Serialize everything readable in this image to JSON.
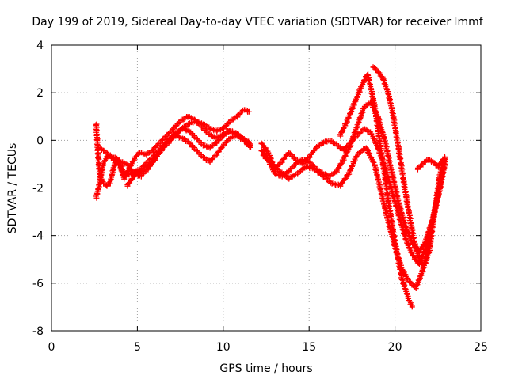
{
  "chart_data": {
    "type": "scatter",
    "title": "Day 199 of 2019, Sidereal Day-to-day VTEC variation (SDTVAR) for receiver lmmf",
    "xlabel": "GPS time / hours",
    "ylabel": "SDTVAR / TECUs",
    "xlim": [
      0,
      25
    ],
    "ylim": [
      -8,
      4
    ],
    "xticks": [
      "0",
      "5",
      "10",
      "15",
      "20",
      "25"
    ],
    "yticks": [
      "-8",
      "-6",
      "-4",
      "-2",
      "0",
      "2",
      "4"
    ],
    "grid": true,
    "marker": "plus",
    "color": "#ff0000",
    "series": [
      {
        "x": [
          2.6,
          2.7,
          2.8,
          3.0,
          3.2,
          3.4,
          3.6,
          3.8,
          4.0,
          4.3,
          4.6,
          4.9,
          5.2,
          5.6,
          6.0,
          6.4,
          6.8,
          7.2,
          7.6,
          8.0,
          8.4,
          8.8,
          9.2,
          9.6,
          10.0,
          10.4,
          10.8,
          11.2,
          11.5
        ],
        "y": [
          0.7,
          -0.5,
          -1.5,
          -1.8,
          -1.9,
          -1.8,
          -1.2,
          -0.8,
          -1.1,
          -1.5,
          -1.4,
          -1.3,
          -1.2,
          -0.9,
          -0.6,
          -0.3,
          0.0,
          0.3,
          0.5,
          0.7,
          0.8,
          0.7,
          0.5,
          0.4,
          0.5,
          0.8,
          1.0,
          1.3,
          1.2
        ]
      },
      {
        "x": [
          2.7,
          3.0,
          3.3,
          3.6,
          3.9,
          4.2,
          4.5,
          4.8,
          5.1,
          5.5,
          5.9,
          6.3,
          6.7,
          7.1,
          7.5,
          7.9,
          8.3,
          8.7,
          9.1,
          9.5,
          9.9,
          10.3,
          10.7,
          11.1,
          11.5
        ],
        "y": [
          -0.3,
          -0.4,
          -0.6,
          -0.7,
          -0.8,
          -1.6,
          -1.2,
          -0.8,
          -0.5,
          -0.6,
          -0.4,
          -0.1,
          0.2,
          0.5,
          0.8,
          1.0,
          0.9,
          0.6,
          0.3,
          0.1,
          0.2,
          0.4,
          0.3,
          0.1,
          -0.1
        ]
      },
      {
        "x": [
          2.6,
          2.8,
          3.0,
          3.3,
          3.6,
          4.0,
          4.4,
          4.8,
          5.2,
          5.6,
          6.0,
          6.4,
          6.8,
          7.2,
          7.6,
          8.0,
          8.4,
          8.8,
          9.2,
          9.6,
          10.0,
          10.4,
          10.8,
          11.2,
          11.6
        ],
        "y": [
          -2.4,
          -1.8,
          -1.0,
          -0.6,
          -0.8,
          -0.9,
          -1.0,
          -1.4,
          -1.5,
          -1.2,
          -0.8,
          -0.4,
          -0.1,
          0.2,
          0.5,
          0.4,
          0.1,
          -0.2,
          -0.3,
          -0.1,
          0.2,
          0.4,
          0.3,
          0.0,
          -0.3
        ]
      },
      {
        "x": [
          4.4,
          4.8,
          5.2,
          5.6,
          6.0,
          6.4,
          6.8,
          7.2,
          7.6,
          8.0,
          8.4,
          8.8,
          9.2,
          9.6,
          10.0,
          10.4,
          10.8,
          11.2,
          11.6
        ],
        "y": [
          -1.9,
          -1.5,
          -1.3,
          -1.1,
          -0.8,
          -0.4,
          0.0,
          0.2,
          0.1,
          -0.1,
          -0.4,
          -0.7,
          -0.9,
          -0.6,
          -0.2,
          0.1,
          0.2,
          0.0,
          -0.2
        ]
      },
      {
        "x": [
          12.2,
          12.6,
          13.0,
          13.4,
          13.8,
          14.2,
          14.6,
          15.0,
          15.4,
          15.8,
          16.2,
          16.6,
          17.0,
          17.4,
          17.8,
          18.2,
          18.6,
          19.0,
          19.4,
          19.8,
          20.2,
          20.6,
          21.0,
          21.4,
          21.8,
          22.2,
          22.6,
          22.9
        ],
        "y": [
          -0.1,
          -0.5,
          -1.2,
          -0.9,
          -0.5,
          -0.8,
          -1.0,
          -0.7,
          -0.3,
          -0.1,
          0.0,
          -0.2,
          -0.4,
          -0.1,
          0.2,
          0.5,
          0.3,
          -0.3,
          -1.1,
          -2.1,
          -3.1,
          -4.1,
          -4.8,
          -5.2,
          -4.5,
          -3.3,
          -2.0,
          -0.8
        ]
      },
      {
        "x": [
          12.2,
          12.6,
          13.0,
          13.4,
          13.8,
          14.2,
          14.6,
          15.0,
          15.4,
          15.8,
          16.2,
          16.6,
          17.0,
          17.4,
          17.8,
          18.2,
          18.6,
          19.0,
          19.4,
          19.8,
          20.2,
          20.6,
          21.0,
          21.4,
          21.8,
          22.2,
          22.6,
          22.9
        ],
        "y": [
          -0.4,
          -0.8,
          -1.4,
          -1.5,
          -1.3,
          -1.0,
          -0.8,
          -0.9,
          -1.2,
          -1.4,
          -1.5,
          -1.3,
          -0.8,
          -0.2,
          0.6,
          1.4,
          1.6,
          1.0,
          0.0,
          -1.3,
          -2.6,
          -3.6,
          -4.3,
          -4.7,
          -4.2,
          -3.3,
          -2.1,
          -1.0
        ]
      },
      {
        "x": [
          12.3,
          12.8,
          13.3,
          13.8,
          14.3,
          14.8,
          15.3,
          15.8,
          16.3,
          16.8,
          17.3,
          17.8,
          18.3,
          18.8,
          19.2,
          19.6,
          20.0,
          20.4,
          20.8,
          21.2,
          21.6,
          22.0,
          22.4,
          22.8
        ],
        "y": [
          -0.6,
          -1.0,
          -1.3,
          -1.6,
          -1.4,
          -1.1,
          -1.2,
          -1.5,
          -1.8,
          -1.9,
          -1.4,
          -0.6,
          -0.3,
          -1.0,
          -2.2,
          -3.4,
          -4.5,
          -5.4,
          -5.9,
          -6.2,
          -5.5,
          -4.2,
          -2.6,
          -1.2
        ]
      },
      {
        "x": [
          16.8,
          17.2,
          17.6,
          18.0,
          18.4,
          18.8,
          19.2,
          19.6,
          20.0,
          20.4,
          20.8,
          21.0
        ],
        "y": [
          0.2,
          0.8,
          1.5,
          2.2,
          2.8,
          1.5,
          -0.5,
          -2.5,
          -4.3,
          -5.8,
          -6.7,
          -7.0
        ]
      },
      {
        "x": [
          18.7,
          19.0,
          19.3,
          19.6,
          19.9,
          20.2,
          20.5,
          20.8,
          21.1,
          21.4,
          21.7,
          22.0,
          22.3,
          22.6,
          22.9
        ],
        "y": [
          3.1,
          2.9,
          2.6,
          2.0,
          1.0,
          -0.3,
          -1.7,
          -3.0,
          -4.2,
          -5.0,
          -5.3,
          -4.6,
          -3.0,
          -1.5,
          -0.7
        ]
      },
      {
        "x": [
          21.3,
          21.6,
          21.9,
          22.2,
          22.5,
          22.8
        ],
        "y": [
          -1.2,
          -1.0,
          -0.8,
          -0.9,
          -1.1,
          -0.8
        ]
      }
    ]
  }
}
